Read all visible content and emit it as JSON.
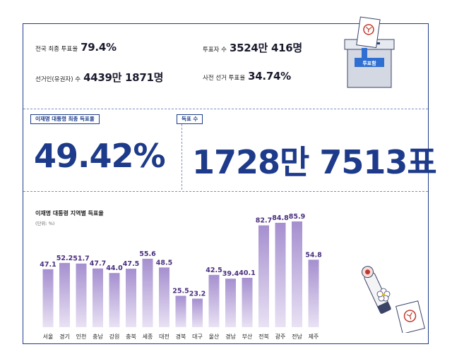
{
  "stats": {
    "turnout_label": "전국 최종 투표율",
    "turnout_value": "79.4%",
    "voters_label": "투표자 수",
    "voters_value": "3524만 416명",
    "electorate_label": "선거인(유권자) 수",
    "electorate_value": "4439만 1871명",
    "early_label": "사전 선거 투표율",
    "early_value": "34.74%"
  },
  "ballot_box": {
    "label": "투표함"
  },
  "highlight": {
    "rate_tag": "이재명 대통령 최종 득표율",
    "rate_value": "49.42%",
    "votes_tag": "득표 수",
    "votes_value": "1728만 7513표"
  },
  "chart_data": {
    "type": "bar",
    "title": "이재명 대통령 지역별 득표율",
    "unit": "(단위: %)",
    "categories": [
      "서울",
      "경기",
      "인천",
      "충남",
      "강원",
      "충북",
      "세종",
      "대전",
      "경북",
      "대구",
      "울산",
      "경남",
      "부산",
      "전북",
      "광주",
      "전남",
      "제주"
    ],
    "values": [
      47.1,
      52.2,
      51.7,
      47.7,
      44.0,
      47.5,
      55.6,
      48.5,
      25.5,
      23.2,
      42.5,
      39.4,
      40.1,
      82.7,
      84.8,
      85.9,
      54.8
    ],
    "value_labels": [
      "47.1",
      "52.2",
      "51.7",
      "47.7",
      "44.0",
      "47.5",
      "55.6",
      "48.5",
      "25.5",
      "23.2",
      "42.5",
      "39.4",
      "40.1",
      "82.7",
      "84.8",
      "85.9",
      "54.8"
    ],
    "ylim": [
      0,
      85.9
    ],
    "grid": false,
    "colors": {
      "bar_top": "#a58fcf",
      "bar_bottom": "#e9e2f4",
      "label": "#4b2f7f"
    }
  }
}
